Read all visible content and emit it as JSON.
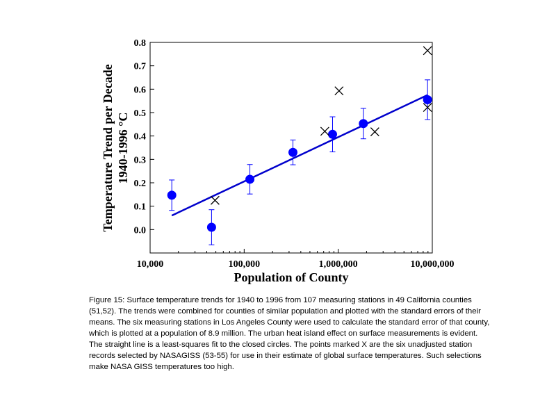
{
  "chart_data": {
    "type": "scatter",
    "xlabel": "Population of County",
    "ylabel_line1": "Temperature Trend per Decade",
    "ylabel_line2": "1940-1996 °C",
    "x_scale": "log",
    "xlim": [
      10000,
      10000000
    ],
    "ylim": [
      -0.1,
      0.8
    ],
    "x_ticks": [
      10000,
      100000,
      1000000,
      10000000
    ],
    "x_tick_labels": [
      "10,000",
      "100,000",
      "1,000,000",
      "10,000,000"
    ],
    "y_ticks": [
      0.0,
      0.1,
      0.2,
      0.3,
      0.4,
      0.5,
      0.6,
      0.7,
      0.8
    ],
    "y_tick_labels": [
      "0.0",
      "0.1",
      "0.2",
      "0.3",
      "0.4",
      "0.5",
      "0.6",
      "0.7",
      "0.8"
    ],
    "grid": false,
    "legend": "none",
    "series": [
      {
        "kind": "points_with_error_bars",
        "marker": "filled-circle",
        "color": "#0000ff",
        "points": [
          {
            "x": 17000,
            "y": 0.147,
            "err": 0.065
          },
          {
            "x": 45000,
            "y": 0.01,
            "err": 0.075
          },
          {
            "x": 115000,
            "y": 0.215,
            "err": 0.063
          },
          {
            "x": 330000,
            "y": 0.33,
            "err": 0.053
          },
          {
            "x": 870000,
            "y": 0.407,
            "err": 0.075
          },
          {
            "x": 1850000,
            "y": 0.453,
            "err": 0.065
          },
          {
            "x": 8900000,
            "y": 0.555,
            "err": 0.085
          }
        ]
      },
      {
        "kind": "points",
        "marker": "x",
        "color": "#000000",
        "points": [
          {
            "x": 49000,
            "y": 0.125
          },
          {
            "x": 720000,
            "y": 0.42
          },
          {
            "x": 1020000,
            "y": 0.593
          },
          {
            "x": 2450000,
            "y": 0.418
          },
          {
            "x": 8900000,
            "y": 0.522
          },
          {
            "x": 8900000,
            "y": 0.765
          }
        ]
      },
      {
        "kind": "fit_line",
        "color": "#0000cc",
        "x": [
          17000,
          8900000
        ],
        "y": [
          0.06,
          0.575
        ]
      }
    ]
  },
  "caption": "Figure 15: Surface temperature trends for 1940 to 1996 from 107 measuring stations in 49 California counties (51,52). The trends were combined for counties of similar population and plotted with the standard errors of their means. The six measuring stations in Los Angeles County were used to calculate the standard error of that county, which is plotted at a population of 8.9 million. The urban heat island effect on surface measurements is evident. The straight line is a least-squares fit to the closed circles. The points marked X are the six unadjusted station records selected by NASAGISS (53-55) for use in their estimate of global surface temperatures. Such selections make NASA GISS temperatures too high."
}
